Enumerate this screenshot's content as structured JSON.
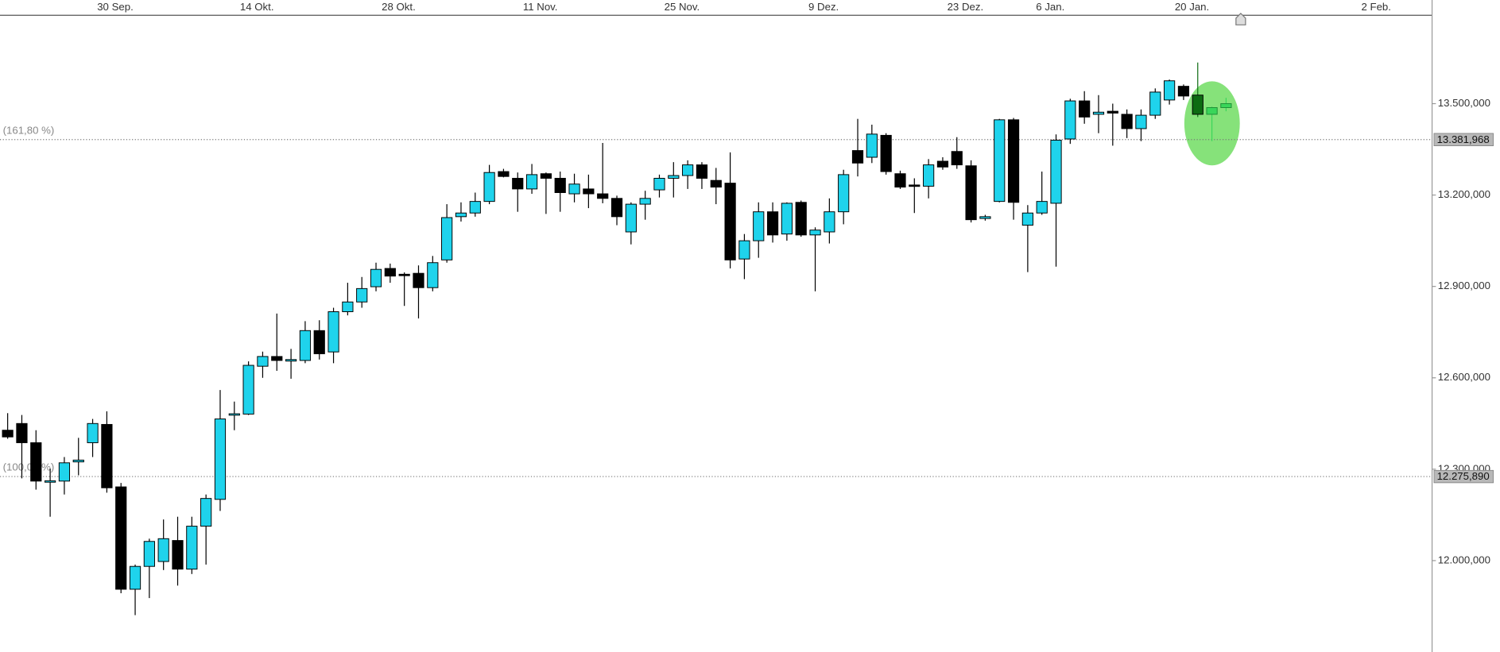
{
  "chart_data": {
    "type": "candlestick",
    "categories": [
      null,
      null,
      null,
      null,
      null,
      null,
      null,
      null,
      "30 Sep.",
      null,
      null,
      null,
      null,
      null,
      null,
      null,
      null,
      null,
      "14 Okt.",
      null,
      null,
      null,
      null,
      null,
      null,
      null,
      null,
      null,
      "28 Okt.",
      null,
      null,
      null,
      null,
      null,
      null,
      null,
      null,
      null,
      "11 Nov.",
      null,
      null,
      null,
      null,
      null,
      null,
      null,
      null,
      null,
      "25 Nov.",
      null,
      null,
      null,
      null,
      null,
      null,
      null,
      null,
      null,
      "9 Dez.",
      null,
      null,
      null,
      null,
      null,
      null,
      null,
      null,
      null,
      "23 Dez.",
      null,
      null,
      null,
      null,
      null,
      "6 Jan.",
      null,
      null,
      null,
      null,
      null,
      null,
      null,
      null,
      null,
      "20 Jan.",
      null,
      null,
      null,
      null,
      null,
      null,
      null,
      null,
      null,
      null,
      null,
      null,
      "2 Feb.",
      null,
      null,
      null
    ],
    "open": [
      12428000,
      12450000,
      12387000,
      12258000,
      12261000,
      12324000,
      12387000,
      12447000,
      12242000,
      11906000,
      11981000,
      11997000,
      12066000,
      11972000,
      12113000,
      12201000,
      12478000,
      12481000,
      12638000,
      12670000,
      12655000,
      12657000,
      12755000,
      12685000,
      12817000,
      12849000,
      12899000,
      12959000,
      12940000,
      12943000,
      12896000,
      12987000,
      13129000,
      13141000,
      13179000,
      13277000,
      13255000,
      13220000,
      13270000,
      13255000,
      13204000,
      13220000,
      13204000,
      13189000,
      13079000,
      13170000,
      13217000,
      13255000,
      13264000,
      13299000,
      13248000,
      13239000,
      12990000,
      13050000,
      13145000,
      13072000,
      13176000,
      13069000,
      13079000,
      13145000,
      13346000,
      13324000,
      13396000,
      13270000,
      13233000,
      13229000,
      13311000,
      13343000,
      13296000,
      13123000,
      13179000,
      13447000,
      13101000,
      13141000,
      13173000,
      13384000,
      13509000,
      13465000,
      13475000,
      13465000,
      13418000,
      13462000,
      13512000,
      13557000,
      13528000,
      13465000,
      13487000,
      null,
      null,
      null,
      null,
      null,
      null,
      null,
      null,
      null,
      null,
      null,
      null,
      null,
      null
    ],
    "high": [
      12484000,
      12478000,
      12428000,
      12302000,
      12340000,
      12403000,
      12465000,
      12490000,
      12255000,
      11987000,
      12072000,
      12135000,
      12144000,
      12144000,
      12217000,
      12560000,
      12522000,
      12654000,
      12686000,
      12811000,
      12695000,
      12786000,
      12789000,
      12830000,
      12912000,
      12931000,
      12978000,
      12975000,
      12946000,
      12969000,
      13000000,
      13170000,
      13176000,
      13208000,
      13299000,
      13286000,
      13274000,
      13302000,
      13274000,
      13277000,
      13270000,
      13267000,
      13371000,
      13198000,
      13176000,
      13214000,
      13267000,
      13308000,
      13314000,
      13308000,
      13289000,
      13340000,
      13072000,
      13176000,
      13176000,
      13176000,
      13182000,
      13094000,
      13189000,
      13283000,
      13450000,
      13431000,
      13403000,
      13280000,
      13255000,
      13318000,
      13324000,
      13390000,
      13314000,
      13135000,
      13450000,
      13453000,
      13167000,
      13277000,
      13399000,
      13516000,
      13541000,
      13528000,
      13500000,
      13481000,
      13481000,
      13550000,
      13579000,
      13563000,
      13635000,
      13490000,
      13519000,
      null,
      null,
      null,
      null,
      null,
      null,
      null,
      null,
      null,
      null,
      null,
      null,
      null,
      null
    ],
    "low": [
      12400000,
      12270000,
      12233000,
      12144000,
      12217000,
      12280000,
      12340000,
      12223000,
      11893000,
      11821000,
      11877000,
      11969000,
      11918000,
      11956000,
      11987000,
      12163000,
      12428000,
      12478000,
      12600000,
      12623000,
      12597000,
      12648000,
      12660000,
      12648000,
      12805000,
      12830000,
      12884000,
      12912000,
      12836000,
      12795000,
      12884000,
      12978000,
      13113000,
      13129000,
      13170000,
      13258000,
      13145000,
      13204000,
      13138000,
      13145000,
      13176000,
      13157000,
      13173000,
      13101000,
      13038000,
      13119000,
      13192000,
      13192000,
      13220000,
      13220000,
      13170000,
      12959000,
      12924000,
      12994000,
      13044000,
      13050000,
      13063000,
      12884000,
      13041000,
      13104000,
      13261000,
      13305000,
      13267000,
      13220000,
      13141000,
      13189000,
      13283000,
      13286000,
      13110000,
      13116000,
      13176000,
      13119000,
      12947000,
      13135000,
      12965000,
      13368000,
      13434000,
      13403000,
      13362000,
      13387000,
      13377000,
      13450000,
      13497000,
      13512000,
      13456000,
      13377000,
      13475000,
      null,
      null,
      null,
      null,
      null,
      null,
      null,
      null,
      null,
      null,
      null,
      null,
      null,
      null
    ],
    "close": [
      12406000,
      12387000,
      12261000,
      12262000,
      12321000,
      12330000,
      12450000,
      12239000,
      11906000,
      11981000,
      12063000,
      12072000,
      11972000,
      12113000,
      12204000,
      12465000,
      12482000,
      12641000,
      12670000,
      12657000,
      12660000,
      12755000,
      12679000,
      12817000,
      12849000,
      12893000,
      12956000,
      12934000,
      12937000,
      12896000,
      12978000,
      13126000,
      13141000,
      13179000,
      13274000,
      13261000,
      13220000,
      13267000,
      13255000,
      13208000,
      13236000,
      13204000,
      13189000,
      13129000,
      13170000,
      13189000,
      13255000,
      13264000,
      13299000,
      13255000,
      13226000,
      12987000,
      13050000,
      13145000,
      13069000,
      13173000,
      13069000,
      13085000,
      13145000,
      13267000,
      13305000,
      13400000,
      13277000,
      13226000,
      13229000,
      13299000,
      13292000,
      13299000,
      13119000,
      13129000,
      13447000,
      13176000,
      13141000,
      13179000,
      13380000,
      13509000,
      13456000,
      13472000,
      13469000,
      13418000,
      13462000,
      13538000,
      13575000,
      13525000,
      13465000,
      13487000,
      13500000,
      null,
      null,
      null,
      null,
      null,
      null,
      null,
      null,
      null,
      null,
      null,
      null,
      null,
      null
    ],
    "colors": [
      "#000000",
      "#000000",
      "#000000",
      "#1fd3ec",
      "#1fd3ec",
      "#1fd3ec",
      "#1fd3ec",
      "#000000",
      "#000000",
      "#1fd3ec",
      "#1fd3ec",
      "#1fd3ec",
      "#000000",
      "#1fd3ec",
      "#1fd3ec",
      "#1fd3ec",
      "#1fd3ec",
      "#1fd3ec",
      "#1fd3ec",
      "#000000",
      "#1fd3ec",
      "#1fd3ec",
      "#000000",
      "#1fd3ec",
      "#1fd3ec",
      "#1fd3ec",
      "#1fd3ec",
      "#000000",
      "#000000",
      "#000000",
      "#1fd3ec",
      "#1fd3ec",
      "#1fd3ec",
      "#1fd3ec",
      "#1fd3ec",
      "#000000",
      "#000000",
      "#1fd3ec",
      "#000000",
      "#000000",
      "#1fd3ec",
      "#000000",
      "#000000",
      "#000000",
      "#1fd3ec",
      "#1fd3ec",
      "#1fd3ec",
      "#1fd3ec",
      "#1fd3ec",
      "#000000",
      "#000000",
      "#000000",
      "#1fd3ec",
      "#1fd3ec",
      "#000000",
      "#1fd3ec",
      "#000000",
      "#1fd3ec",
      "#1fd3ec",
      "#1fd3ec",
      "#000000",
      "#1fd3ec",
      "#000000",
      "#000000",
      "#000000",
      "#1fd3ec",
      "#000000",
      "#000000",
      "#000000",
      "#1fd3ec",
      "#1fd3ec",
      "#000000",
      "#1fd3ec",
      "#1fd3ec",
      "#1fd3ec",
      "#1fd3ec",
      "#000000",
      "#1fd3ec",
      "#000000",
      "#000000",
      "#1fd3ec",
      "#1fd3ec",
      "#1fd3ec",
      "#000000",
      "#0d6b12",
      "#3ad65a",
      "#3ad65a",
      null,
      null,
      null,
      null,
      null,
      null,
      null,
      null,
      null,
      null,
      null,
      null,
      null,
      null
    ],
    "ylim": [
      11700000,
      13790000
    ],
    "yticks": [
      {
        "value": 12000000,
        "label": "12.000,000"
      },
      {
        "value": 12300000,
        "label": "12.300,000"
      },
      {
        "value": 12600000,
        "label": "12.600,000"
      },
      {
        "value": 12900000,
        "label": "12.900,000"
      },
      {
        "value": 13200000,
        "label": "13.200,000"
      },
      {
        "value": 13500000,
        "label": "13.500,000"
      }
    ],
    "levels": [
      {
        "label": "(161,80 %)",
        "value": 13381968,
        "value_label": "13.381,968"
      },
      {
        "label": "(100,00 %)",
        "value": 12275890,
        "value_label": "12.275,890"
      }
    ]
  }
}
